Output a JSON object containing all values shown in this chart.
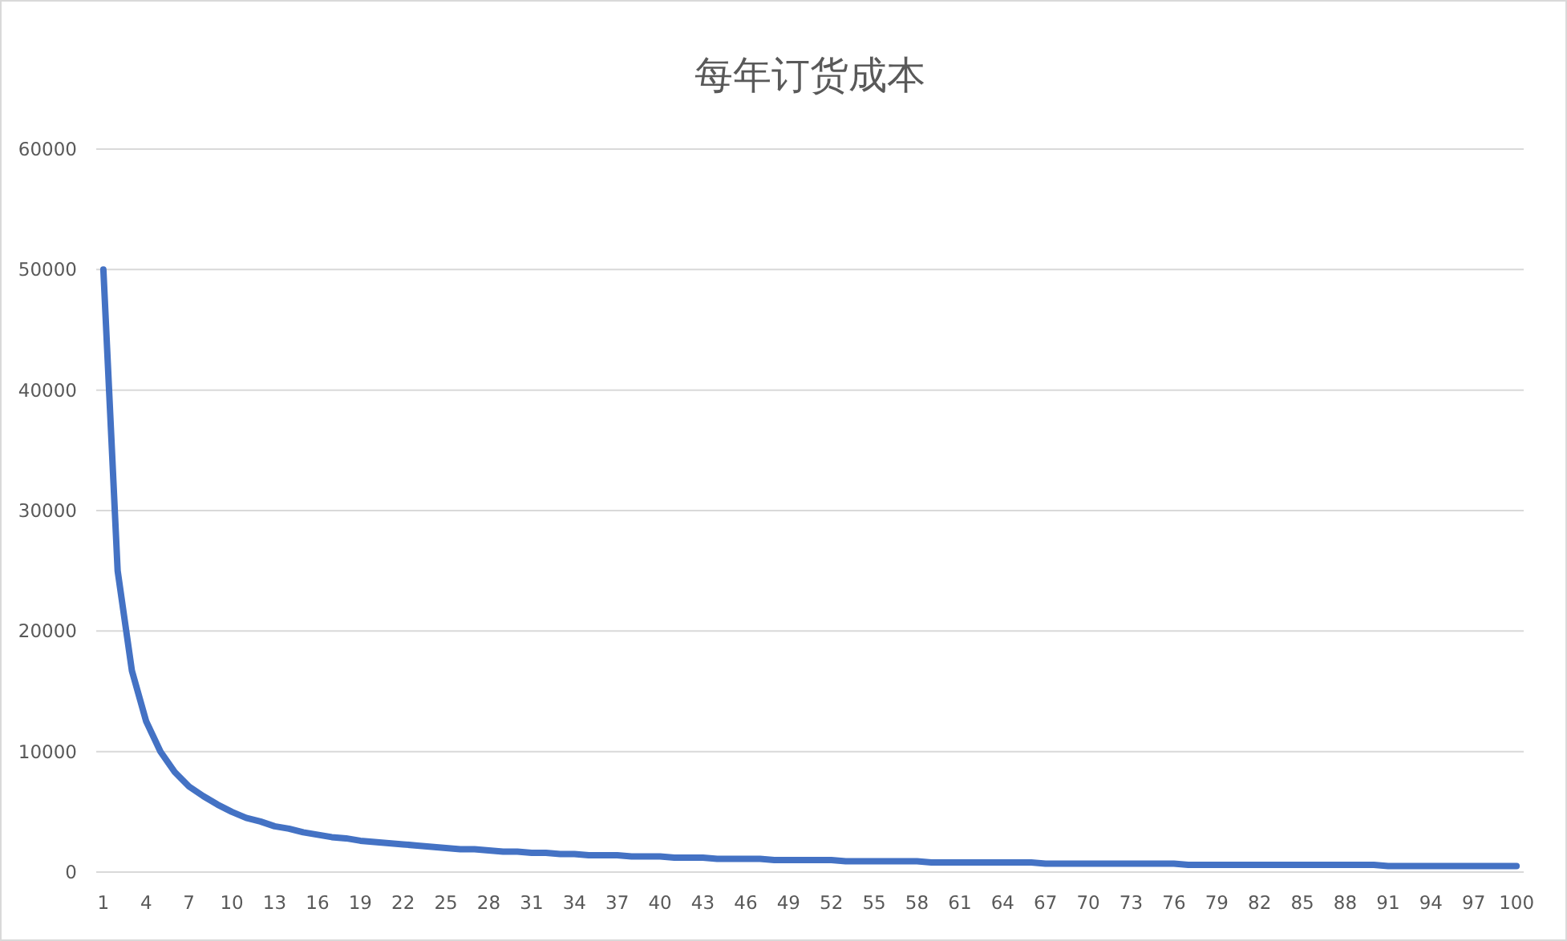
{
  "chart_data": {
    "type": "line",
    "title": "每年订货成本",
    "categories": [
      "1",
      null,
      null,
      "4",
      null,
      null,
      "7",
      null,
      null,
      "10",
      null,
      null,
      "13",
      null,
      null,
      "16",
      null,
      null,
      "19",
      null,
      null,
      "22",
      null,
      null,
      "25",
      null,
      null,
      "28",
      null,
      null,
      "31",
      null,
      null,
      "34",
      null,
      null,
      "37",
      null,
      null,
      "40",
      null,
      null,
      "43",
      null,
      null,
      "46",
      null,
      null,
      "49",
      null,
      null,
      "52",
      null,
      null,
      "55",
      null,
      null,
      "58",
      null,
      null,
      "61",
      null,
      null,
      "64",
      null,
      null,
      "67",
      null,
      null,
      "70",
      null,
      null,
      "73",
      null,
      null,
      "76",
      null,
      null,
      "79",
      null,
      null,
      "82",
      null,
      null,
      "85",
      null,
      null,
      "88",
      null,
      null,
      "91",
      null,
      null,
      "94",
      null,
      null,
      "97",
      null,
      null,
      "100"
    ],
    "series": [
      {
        "color": "#4472c4",
        "values": [
          50000,
          25000,
          16700,
          12500,
          10000,
          8300,
          7100,
          6300,
          5600,
          5000,
          4500,
          4200,
          3800,
          3600,
          3300,
          3100,
          2900,
          2800,
          2600,
          2500,
          2400,
          2300,
          2200,
          2100,
          2000,
          1900,
          1900,
          1800,
          1700,
          1700,
          1600,
          1600,
          1500,
          1500,
          1400,
          1400,
          1400,
          1300,
          1300,
          1300,
          1200,
          1200,
          1200,
          1100,
          1100,
          1100,
          1100,
          1000,
          1000,
          1000,
          1000,
          1000,
          900,
          900,
          900,
          900,
          900,
          900,
          800,
          800,
          800,
          800,
          800,
          800,
          800,
          800,
          700,
          700,
          700,
          700,
          700,
          700,
          700,
          700,
          700,
          700,
          600,
          600,
          600,
          600,
          600,
          600,
          600,
          600,
          600,
          600,
          600,
          600,
          600,
          600,
          500,
          500,
          500,
          500,
          500,
          500,
          500,
          500,
          500,
          500
        ]
      }
    ],
    "ylim": [
      0,
      60000
    ],
    "yticks": [
      0,
      10000,
      20000,
      30000,
      40000,
      50000,
      60000
    ],
    "grid": "y",
    "marker": "none",
    "line_style": "solid"
  }
}
